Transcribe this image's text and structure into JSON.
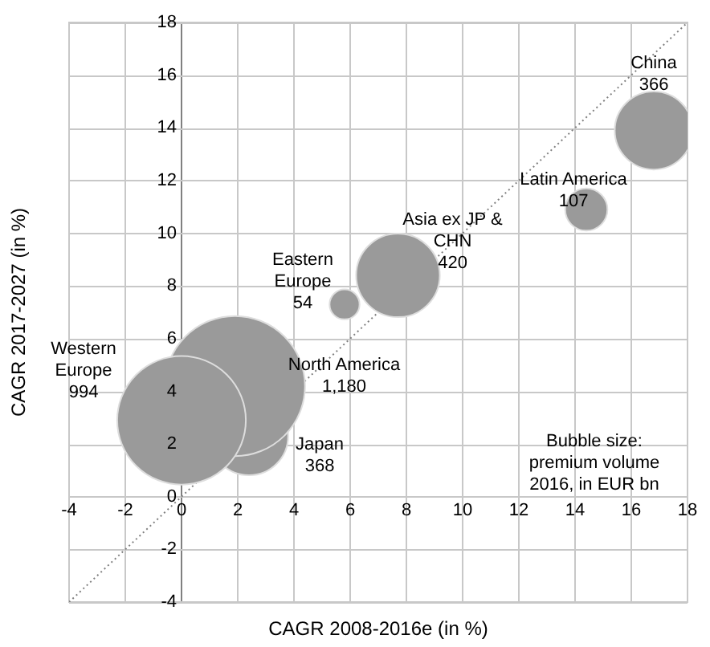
{
  "chart_data": {
    "type": "bubble",
    "xlabel": "CAGR 2008-2016e (in %)",
    "ylabel": "CAGR 2017-2027 (in %)",
    "xlim": [
      -4,
      18
    ],
    "xticks": [
      -4,
      -2,
      0,
      2,
      4,
      6,
      8,
      10,
      12,
      14,
      16,
      18
    ],
    "ylim": [
      -4,
      18
    ],
    "yticks": [
      -4,
      -2,
      0,
      2,
      4,
      6,
      8,
      10,
      12,
      14,
      16,
      18
    ],
    "grid": true,
    "legend": false,
    "annotations": [
      "Bubble size: premium volume 2016, in EUR bn"
    ],
    "series": [
      {
        "name": "Western Europe",
        "color": "#9a9a9a",
        "x": [
          0
        ],
        "values": [
          2.9
        ],
        "sizes": [
          994
        ],
        "value_labels": [
          "994"
        ]
      },
      {
        "name": "North America",
        "color": "#9a9a9a",
        "x": [
          1.9
        ],
        "values": [
          4.2
        ],
        "sizes": [
          1180
        ],
        "value_labels": [
          "1,180"
        ]
      },
      {
        "name": "Japan",
        "color": "#9a9a9a",
        "x": [
          2.4
        ],
        "values": [
          2.3
        ],
        "sizes": [
          368
        ],
        "value_labels": [
          "368"
        ]
      },
      {
        "name": "Eastern Europe",
        "color": "#9a9a9a",
        "x": [
          5.8
        ],
        "values": [
          7.3
        ],
        "sizes": [
          54
        ],
        "value_labels": [
          "54"
        ]
      },
      {
        "name": "Asia ex JP & CHN",
        "color": "#9a9a9a",
        "x": [
          7.7
        ],
        "values": [
          8.4
        ],
        "sizes": [
          420
        ],
        "value_labels": [
          "420"
        ]
      },
      {
        "name": "Latin America",
        "color": "#9a9a9a",
        "x": [
          14.4
        ],
        "values": [
          10.9
        ],
        "sizes": [
          107
        ],
        "value_labels": [
          "107"
        ]
      },
      {
        "name": "China",
        "color": "#9a9a9a",
        "x": [
          16.8
        ],
        "values": [
          13.9
        ],
        "sizes": [
          366
        ],
        "value_labels": [
          "366"
        ]
      },
      {
        "type": "line",
        "color": "#808080",
        "line_style": "dotted",
        "marker": "none",
        "x": [
          -4,
          18
        ],
        "values": [
          -4,
          18
        ]
      }
    ]
  }
}
